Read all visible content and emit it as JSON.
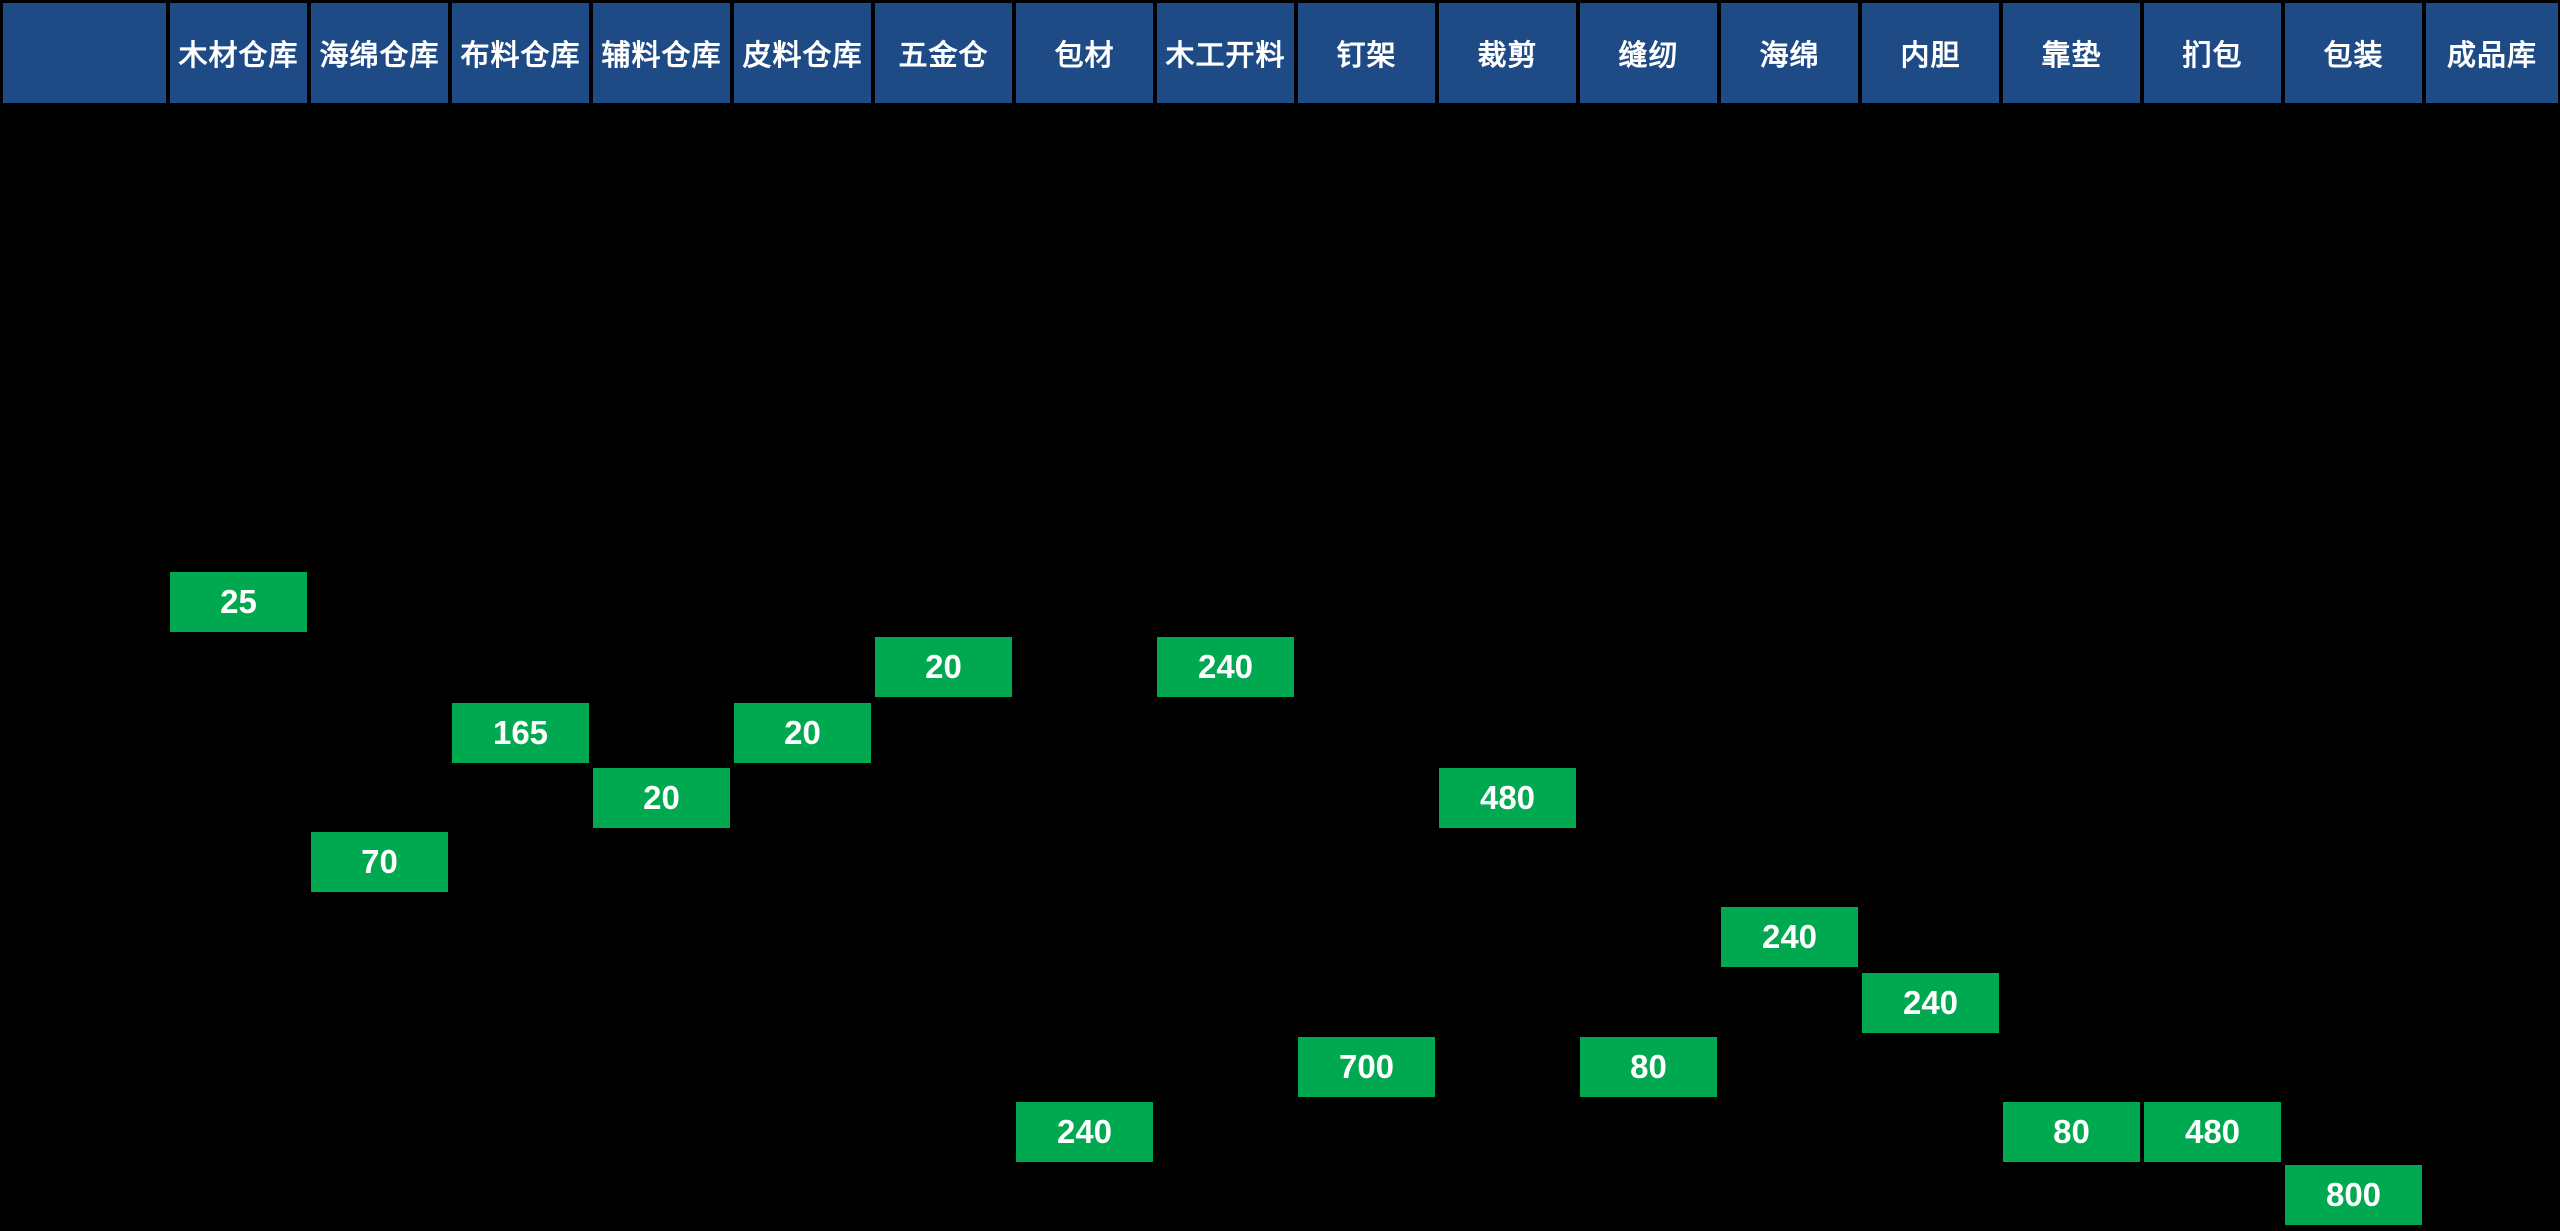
{
  "board": {
    "name": "production-flow-board",
    "columns": [
      "",
      "木材仓库",
      "海绵仓库",
      "布料仓库",
      "辅料仓库",
      "皮料仓库",
      "五金仓",
      "包材",
      "木工开料",
      "钉架",
      "裁剪",
      "缝纫",
      "海绵",
      "内胆",
      "靠垫",
      "扪包",
      "包装",
      "成品库"
    ],
    "cells": [
      {
        "station": "木材仓库",
        "col": 1,
        "row": 0,
        "value": "25"
      },
      {
        "station": "五金仓",
        "col": 6,
        "row": 1,
        "value": "20"
      },
      {
        "station": "木工开料",
        "col": 8,
        "row": 1,
        "value": "240"
      },
      {
        "station": "布料仓库",
        "col": 3,
        "row": 2,
        "value": "165"
      },
      {
        "station": "皮料仓库",
        "col": 5,
        "row": 2,
        "value": "20"
      },
      {
        "station": "辅料仓库",
        "col": 4,
        "row": 3,
        "value": "20"
      },
      {
        "station": "裁剪",
        "col": 10,
        "row": 3,
        "value": "480"
      },
      {
        "station": "海绵仓库",
        "col": 2,
        "row": 4,
        "value": "70"
      },
      {
        "station": "海绵",
        "col": 12,
        "row": 5,
        "value": "240"
      },
      {
        "station": "内胆",
        "col": 13,
        "row": 6,
        "value": "240"
      },
      {
        "station": "钉架",
        "col": 9,
        "row": 7,
        "value": "700"
      },
      {
        "station": "缝纫",
        "col": 11,
        "row": 7,
        "value": "80"
      },
      {
        "station": "包材",
        "col": 7,
        "row": 8,
        "value": "240"
      },
      {
        "station": "靠垫",
        "col": 14,
        "row": 8,
        "value": "80"
      },
      {
        "station": "扪包",
        "col": 15,
        "row": 8,
        "value": "480"
      },
      {
        "station": "包装",
        "col": 16,
        "row": 9,
        "value": "800"
      }
    ]
  },
  "colors": {
    "background": "#000000",
    "header_bg": "#1E4B85",
    "cell_bg": "#00A94F",
    "text": "#FFFFFF"
  }
}
